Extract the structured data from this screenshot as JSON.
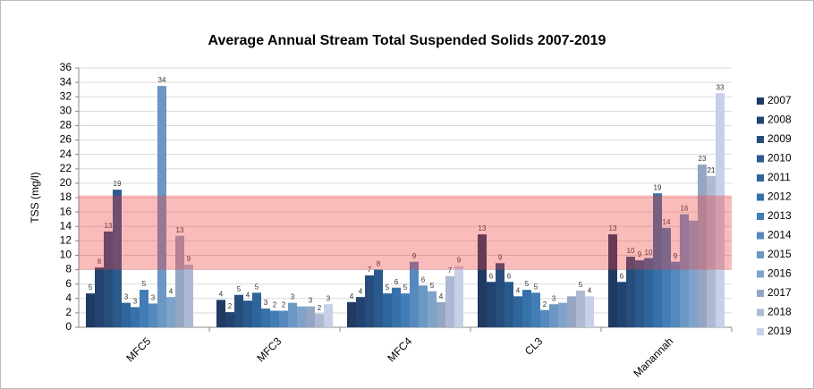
{
  "chart_data": {
    "type": "bar",
    "title": "Average Annual Stream Total Suspended Solids  2007-2019",
    "y_label": "TSS (mg/l)",
    "categories": [
      "MFC5",
      "MFC3",
      "MFC4",
      "CL3",
      "Manannah"
    ],
    "ylim": [
      0,
      36
    ],
    "yticks": [
      0,
      2,
      4,
      6,
      8,
      10,
      12,
      14,
      16,
      18,
      20,
      22,
      24,
      26,
      28,
      30,
      32,
      34,
      36
    ],
    "highlight_band": {
      "from": 8,
      "to": 18.3,
      "color": "rgba(240,60,60,0.35)"
    },
    "series": [
      {
        "name": "2007",
        "color": "#1f3a63",
        "values": [
          4.7,
          3.8,
          3.5,
          12.9,
          12.9
        ],
        "value_labels": [
          "5",
          "4",
          "4",
          "13",
          "13"
        ]
      },
      {
        "name": "2008",
        "color": "#22436f",
        "values": [
          8.3,
          2.1,
          4.2,
          6.3,
          6.3
        ],
        "value_labels": [
          "8",
          "2",
          "4",
          "6",
          "6"
        ]
      },
      {
        "name": "2009",
        "color": "#264e7d",
        "values": [
          13.3,
          4.5,
          7.2,
          8.9,
          9.8
        ],
        "value_labels": [
          "13",
          "5",
          "7",
          "9",
          "10"
        ]
      },
      {
        "name": "2010",
        "color": "#2a5a8c",
        "values": [
          19.1,
          3.7,
          8.0,
          6.3,
          9.3
        ],
        "value_labels": [
          "19",
          "4",
          "8",
          "6",
          "9"
        ]
      },
      {
        "name": "2011",
        "color": "#2e659b",
        "values": [
          3.4,
          4.8,
          4.7,
          4.3,
          9.6
        ],
        "value_labels": [
          "3",
          "5",
          "5",
          "4",
          "10"
        ]
      },
      {
        "name": "2012",
        "color": "#3671aa",
        "values": [
          2.8,
          2.6,
          5.5,
          5.2,
          18.6
        ],
        "value_labels": [
          "3",
          "3",
          "6",
          "5",
          "19"
        ]
      },
      {
        "name": "2013",
        "color": "#427db5",
        "values": [
          5.2,
          2.3,
          4.7,
          4.8,
          13.8
        ],
        "value_labels": [
          "5",
          "2",
          "5",
          "5",
          "14"
        ]
      },
      {
        "name": "2014",
        "color": "#5689bd",
        "values": [
          3.3,
          2.3,
          9.1,
          2.4,
          9.1
        ],
        "value_labels": [
          "3",
          "2",
          "9",
          "2",
          "9"
        ]
      },
      {
        "name": "2015",
        "color": "#6b97c4",
        "values": [
          33.5,
          3.4,
          5.8,
          3.2,
          15.7
        ],
        "value_labels": [
          "34",
          "3",
          "6",
          "3",
          "16"
        ]
      },
      {
        "name": "2016",
        "color": "#7fa3cb",
        "values": [
          4.2,
          2.9,
          5.0,
          3.4,
          14.8
        ],
        "value_labels": [
          "4",
          null,
          "5",
          null,
          null
        ]
      },
      {
        "name": "2017",
        "color": "#95a6c2",
        "values": [
          12.7,
          2.9,
          3.5,
          4.3,
          22.6
        ],
        "value_labels": [
          "13",
          "3",
          "4",
          null,
          "23"
        ]
      },
      {
        "name": "2018",
        "color": "#aebad3",
        "values": [
          8.7,
          1.9,
          7.1,
          5.1,
          21.0
        ],
        "value_labels": [
          "9",
          "2",
          "7",
          "5",
          "21"
        ]
      },
      {
        "name": "2019",
        "color": "#c6d0e6",
        "values": [
          null,
          3.2,
          8.5,
          4.3,
          32.5
        ],
        "value_labels": [
          null,
          "3",
          "9",
          "4",
          "33"
        ]
      }
    ]
  }
}
